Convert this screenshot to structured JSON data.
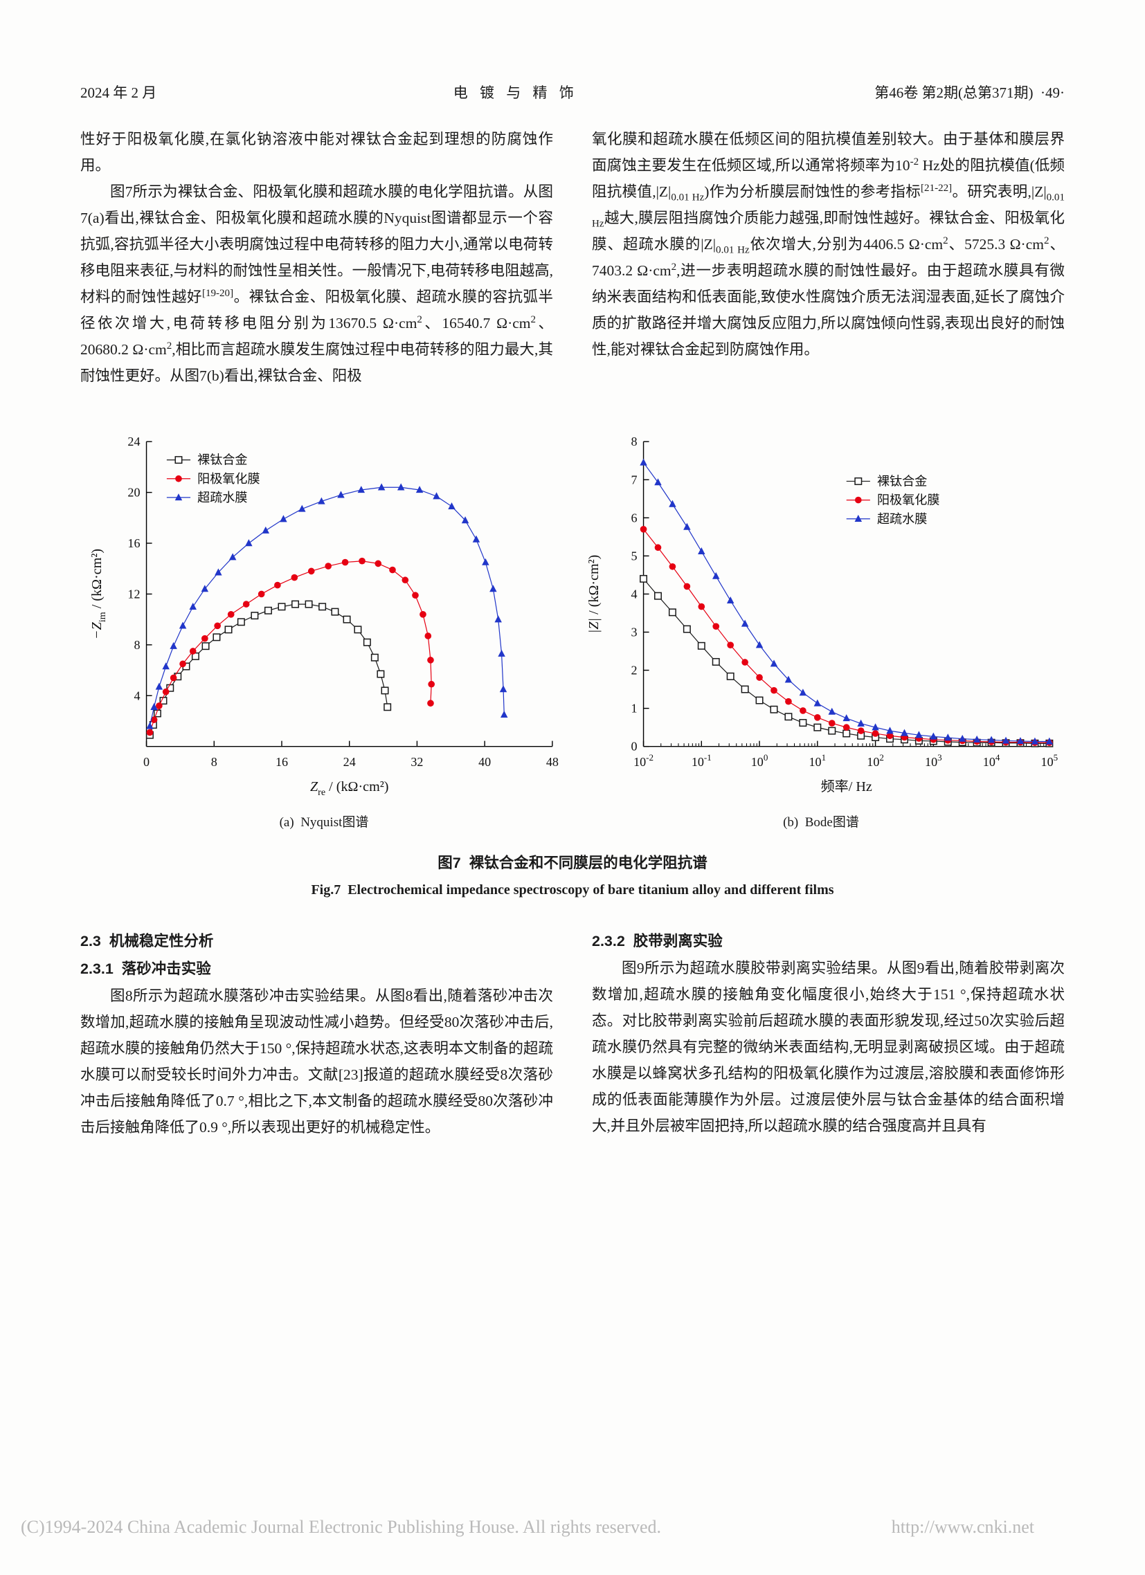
{
  "header": {
    "left": "2024 年 2 月",
    "center": "电 镀 与 精 饰",
    "right": "第46卷 第2期(总第371期)  ·49·"
  },
  "body_text": {
    "left_column": [
      "性好于阳极氧化膜,在氯化钠溶液中能对裸钛合金起到理想的防腐蚀作用。",
      "图7所示为裸钛合金、阳极氧化膜和超疏水膜的电化学阻抗谱。从图7(a)看出,裸钛合金、阳极氧化膜和超疏水膜的Nyquist图谱都显示一个容抗弧,容抗弧半径大小表明腐蚀过程中电荷转移的阻力大小,通常以电荷转移电阻来表征,与材料的耐蚀性呈相关性。一般情况下,电荷转移电阻越高,材料的耐蚀性越好<sup>[19-20]</sup>。裸钛合金、阳极氧化膜、超疏水膜的容抗弧半径依次增大,电荷转移电阻分别为13670.5 Ω·cm<sup>2</sup>、16540.7 Ω·cm<sup>2</sup>、20680.2 Ω·cm<sup>2</sup>,相比而言超疏水膜发生腐蚀过程中电荷转移的阻力最大,其耐蚀性更好。从图7(b)看出,裸钛合金、阳极"
    ],
    "right_column": [
      "氧化膜和超疏水膜在低频区间的阻抗模值差别较大。由于基体和膜层界面腐蚀主要发生在低频区域,所以通常将频率为10<sup>-2</sup> Hz处的阻抗模值(低频阻抗模值,|Z|<sub>0.01 Hz</sub>)作为分析膜层耐蚀性的参考指标<sup>[21-22]</sup>。研究表明,|Z|<sub>0.01 Hz</sub>越大,膜层阻挡腐蚀介质能力越强,即耐蚀性越好。裸钛合金、阳极氧化膜、超疏水膜的|Z|<sub>0.01 Hz</sub>依次增大,分别为4406.5 Ω·cm<sup>2</sup>、5725.3 Ω·cm<sup>2</sup>、7403.2 Ω·cm<sup>2</sup>,进一步表明超疏水膜的耐蚀性最好。由于超疏水膜具有微纳米表面结构和低表面能,致使水性腐蚀介质无法润湿表面,延长了腐蚀介质的扩散路径并增大腐蚀反应阻力,所以腐蚀倾向性弱,表现出良好的耐蚀性,能对裸钛合金起到防腐蚀作用。"
    ],
    "bottom_left": [
      "图8所示为超疏水膜落砂冲击实验结果。从图8看出,随着落砂冲击次数增加,超疏水膜的接触角呈现波动性减小趋势。但经受80次落砂冲击后,超疏水膜的接触角仍然大于150 °,保持超疏水状态,这表明本文制备的超疏水膜可以耐受较长时间外力冲击。文献[23]报道的超疏水膜经受8次落砂冲击后接触角降低了0.7 °,相比之下,本文制备的超疏水膜经受80次落砂冲击后接触角降低了0.9 °,所以表现出更好的机械稳定性。"
    ],
    "bottom_right": [
      "图9所示为超疏水膜胶带剥离实验结果。从图9看出,随着胶带剥离次数增加,超疏水膜的接触角变化幅度很小,始终大于151 °,保持超疏水状态。对比胶带剥离实验前后超疏水膜的表面形貌发现,经过50次实验后超疏水膜仍然具有完整的微纳米表面结构,无明显剥离破损区域。由于超疏水膜是以蜂窝状多孔结构的阳极氧化膜作为过渡层,溶胶膜和表面修饰形成的低表面能薄膜作为外层。过渡层使外层与钛合金基体的结合面积增大,并且外层被牢固把持,所以超疏水膜的结合强度高并且具有"
    ]
  },
  "sections": {
    "h23": "2.3  机械稳定性分析",
    "h231": "2.3.1  落砂冲击实验",
    "h232": "2.3.2  胶带剥离实验"
  },
  "figure": {
    "subcaption_a": "(a)  Nyquist图谱",
    "subcaption_b": "(b)  Bode图谱",
    "caption_cn": "图7  裸钛合金和不同膜层的电化学阻抗谱",
    "caption_en": "Fig.7  Electrochemical impedance spectroscopy of bare titanium alloy and different films"
  },
  "footer": {
    "copyright": "(C)1994-2024 China Academic Journal Electronic Publishing House. All rights reserved.",
    "url": "http://www.cnki.net"
  },
  "chart_data": [
    {
      "type": "scatter",
      "id": "nyquist",
      "xlabel": [
        {
          "t": "Z",
          "i": true
        },
        {
          "t": "re",
          "sub": true
        },
        {
          "t": " / (kΩ·cm²)"
        }
      ],
      "ylabel": [
        {
          "t": "−Z",
          "i": true
        },
        {
          "t": "im",
          "sub": true
        },
        {
          "t": " / (kΩ·cm²)"
        }
      ],
      "xlim": [
        0,
        48
      ],
      "ylim": [
        0,
        24
      ],
      "xticks": [
        0,
        8,
        16,
        24,
        32,
        40,
        48
      ],
      "yticks": [
        4,
        8,
        12,
        16,
        20,
        24
      ],
      "legend_pos": [
        0.05,
        0.06
      ],
      "series": [
        {
          "name": "裸钛合金",
          "color": "#1a1a1a",
          "marker": "square-open",
          "points": [
            [
              0.4,
              0.9
            ],
            [
              0.8,
              1.7
            ],
            [
              1.3,
              2.6
            ],
            [
              2.0,
              3.6
            ],
            [
              2.8,
              4.6
            ],
            [
              3.7,
              5.5
            ],
            [
              4.7,
              6.3
            ],
            [
              5.8,
              7.1
            ],
            [
              7.0,
              7.9
            ],
            [
              8.3,
              8.6
            ],
            [
              9.7,
              9.2
            ],
            [
              11.2,
              9.8
            ],
            [
              12.8,
              10.3
            ],
            [
              14.4,
              10.7
            ],
            [
              16.0,
              11.0
            ],
            [
              17.6,
              11.2
            ],
            [
              19.2,
              11.2
            ],
            [
              20.8,
              11.0
            ],
            [
              22.3,
              10.6
            ],
            [
              23.7,
              10.0
            ],
            [
              25.0,
              9.2
            ],
            [
              26.1,
              8.2
            ],
            [
              27.0,
              7.0
            ],
            [
              27.7,
              5.7
            ],
            [
              28.2,
              4.4
            ],
            [
              28.5,
              3.1
            ]
          ]
        },
        {
          "name": "阳极氧化膜",
          "color": "#e60012",
          "marker": "circle",
          "points": [
            [
              0.4,
              1.1
            ],
            [
              0.9,
              2.1
            ],
            [
              1.5,
              3.2
            ],
            [
              2.3,
              4.3
            ],
            [
              3.2,
              5.4
            ],
            [
              4.3,
              6.5
            ],
            [
              5.5,
              7.5
            ],
            [
              6.9,
              8.5
            ],
            [
              8.4,
              9.5
            ],
            [
              10.0,
              10.4
            ],
            [
              11.8,
              11.2
            ],
            [
              13.6,
              12.0
            ],
            [
              15.5,
              12.7
            ],
            [
              17.5,
              13.3
            ],
            [
              19.5,
              13.8
            ],
            [
              21.5,
              14.2
            ],
            [
              23.5,
              14.5
            ],
            [
              25.5,
              14.6
            ],
            [
              27.4,
              14.4
            ],
            [
              29.1,
              13.9
            ],
            [
              30.6,
              13.1
            ],
            [
              31.8,
              11.9
            ],
            [
              32.7,
              10.4
            ],
            [
              33.3,
              8.7
            ],
            [
              33.6,
              6.8
            ],
            [
              33.7,
              4.9
            ],
            [
              33.6,
              3.4
            ]
          ]
        },
        {
          "name": "超疏水膜",
          "color": "#2136c9",
          "marker": "triangle",
          "points": [
            [
              0.4,
              1.6
            ],
            [
              0.9,
              3.1
            ],
            [
              1.5,
              4.7
            ],
            [
              2.3,
              6.3
            ],
            [
              3.2,
              7.9
            ],
            [
              4.3,
              9.5
            ],
            [
              5.5,
              11.0
            ],
            [
              6.9,
              12.4
            ],
            [
              8.5,
              13.7
            ],
            [
              10.2,
              14.9
            ],
            [
              12.1,
              16.0
            ],
            [
              14.1,
              17.0
            ],
            [
              16.2,
              17.9
            ],
            [
              18.4,
              18.7
            ],
            [
              20.7,
              19.3
            ],
            [
              23.0,
              19.8
            ],
            [
              25.4,
              20.2
            ],
            [
              27.8,
              20.4
            ],
            [
              30.1,
              20.4
            ],
            [
              32.3,
              20.2
            ],
            [
              34.3,
              19.7
            ],
            [
              36.1,
              18.9
            ],
            [
              37.7,
              17.8
            ],
            [
              39.0,
              16.3
            ],
            [
              40.1,
              14.5
            ],
            [
              41.0,
              12.4
            ],
            [
              41.6,
              10.0
            ],
            [
              42.0,
              7.3
            ],
            [
              42.2,
              4.5
            ],
            [
              42.3,
              2.5
            ]
          ]
        }
      ]
    },
    {
      "type": "line",
      "id": "bode",
      "xscale": "log",
      "xlabel": [
        {
          "t": "频率/ Hz"
        }
      ],
      "ylabel": [
        {
          "t": "|Z|",
          "i": true
        },
        {
          "t": " / (kΩ·cm²)"
        }
      ],
      "xlim": [
        -2,
        5
      ],
      "ylim": [
        0,
        8
      ],
      "xticks": [
        -2,
        -1,
        0,
        1,
        2,
        3,
        4,
        5
      ],
      "yticks": [
        0,
        1,
        2,
        3,
        4,
        5,
        6,
        7,
        8
      ],
      "legend_pos": [
        0.5,
        0.13
      ],
      "x": [
        -2,
        -1.75,
        -1.5,
        -1.25,
        -1,
        -0.75,
        -0.5,
        -0.25,
        0,
        0.25,
        0.5,
        0.75,
        1,
        1.25,
        1.5,
        1.75,
        2,
        2.25,
        2.5,
        2.75,
        3,
        3.25,
        3.5,
        3.75,
        4,
        4.25,
        4.5,
        4.75,
        5
      ],
      "series": [
        {
          "name": "裸钛合金",
          "color": "#1a1a1a",
          "marker": "square-open",
          "y": [
            4.4,
            3.95,
            3.52,
            3.08,
            2.64,
            2.22,
            1.84,
            1.5,
            1.21,
            0.97,
            0.78,
            0.62,
            0.5,
            0.41,
            0.34,
            0.28,
            0.24,
            0.2,
            0.18,
            0.15,
            0.14,
            0.12,
            0.11,
            0.1,
            0.1,
            0.09,
            0.09,
            0.08,
            0.08
          ]
        },
        {
          "name": "阳极氧化膜",
          "color": "#e60012",
          "marker": "circle",
          "y": [
            5.7,
            5.22,
            4.72,
            4.2,
            3.67,
            3.15,
            2.66,
            2.21,
            1.81,
            1.47,
            1.18,
            0.94,
            0.76,
            0.61,
            0.5,
            0.41,
            0.34,
            0.28,
            0.24,
            0.21,
            0.18,
            0.16,
            0.15,
            0.13,
            0.12,
            0.11,
            0.11,
            0.1,
            0.1
          ]
        },
        {
          "name": "超疏水膜",
          "color": "#2136c9",
          "marker": "triangle",
          "y": [
            7.45,
            6.93,
            6.36,
            5.76,
            5.12,
            4.47,
            3.83,
            3.22,
            2.66,
            2.17,
            1.75,
            1.41,
            1.13,
            0.91,
            0.74,
            0.6,
            0.5,
            0.41,
            0.35,
            0.3,
            0.26,
            0.23,
            0.2,
            0.18,
            0.17,
            0.15,
            0.14,
            0.13,
            0.13
          ]
        }
      ]
    }
  ]
}
